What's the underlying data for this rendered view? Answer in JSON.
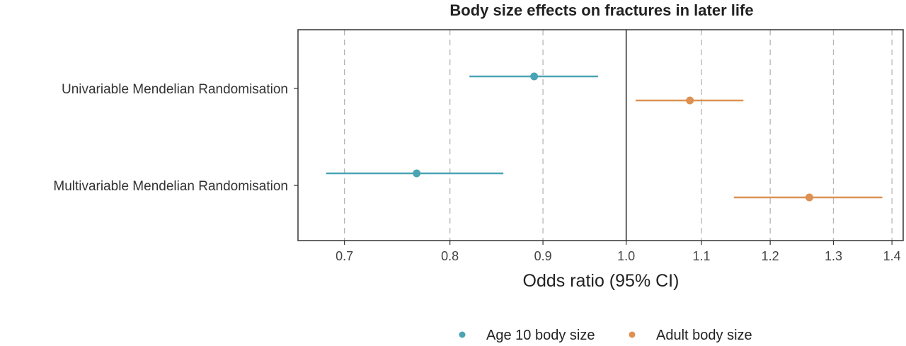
{
  "chart_data": {
    "type": "forest",
    "title": "Body size effects on fractures in later life",
    "xlabel": "Odds ratio (95% CI)",
    "ylabel": "",
    "xscale": "log",
    "xlim": [
      0.66,
      1.42
    ],
    "xticks": [
      0.7,
      0.8,
      0.9,
      1.0,
      1.1,
      1.2,
      1.3,
      1.4
    ],
    "xtick_labels": [
      "0.7",
      "0.8",
      "0.9",
      "1.0",
      "1.1",
      "1.2",
      "1.3",
      "1.4"
    ],
    "reference_line": 1.0,
    "grid": "vertical dashed",
    "legend_position": "bottom",
    "categories": [
      "Univariable Mendelian Randomisation",
      "Multivariable Mendelian Randomisation"
    ],
    "series": [
      {
        "name": "Age 10 body size",
        "color": "#4BA4B4",
        "points": [
          {
            "category": "Univariable Mendelian Randomisation",
            "estimate": 0.89,
            "lower": 0.82,
            "upper": 0.965
          },
          {
            "category": "Multivariable Mendelian Randomisation",
            "estimate": 0.767,
            "lower": 0.684,
            "upper": 0.856
          }
        ]
      },
      {
        "name": "Adult body size",
        "color": "#DD9152",
        "points": [
          {
            "category": "Univariable Mendelian Randomisation",
            "estimate": 1.084,
            "lower": 1.012,
            "upper": 1.16
          },
          {
            "category": "Multivariable Mendelian Randomisation",
            "estimate": 1.261,
            "lower": 1.146,
            "upper": 1.383
          }
        ]
      }
    ]
  }
}
